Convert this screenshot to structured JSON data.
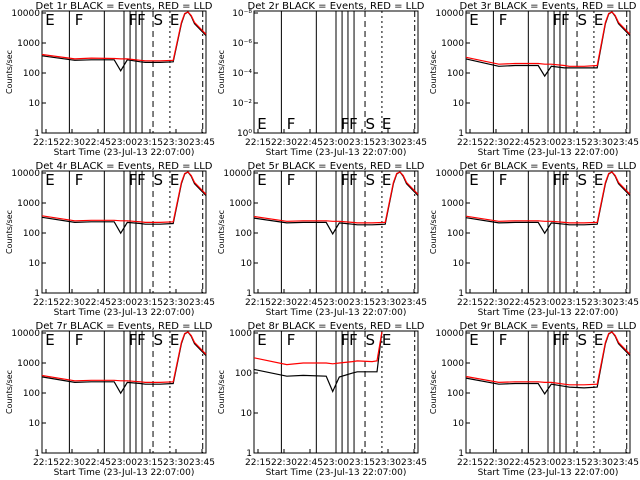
{
  "chart_data": [
    {
      "type": "line",
      "title": "Det 1r BLACK = Events, RED = LLD",
      "xlabel": "Start Time (23-Jul-13 22:07:00)",
      "ylabel": "Counts/sec",
      "x_ticks": [
        "22:15",
        "22:30",
        "22:45",
        "23:00",
        "23:15",
        "23:30",
        "23:45"
      ],
      "y_ticks": [
        "1",
        "10",
        "100",
        "1000",
        "10000"
      ],
      "ylim": [
        1,
        12000
      ],
      "scale": "log",
      "series": [
        {
          "name": "Events",
          "color": "#000000",
          "x": [
            0,
            20,
            30,
            44,
            48,
            52,
            60,
            63,
            72,
            80,
            85,
            87,
            89,
            91,
            93,
            100
          ],
          "y": [
            380,
            270,
            280,
            280,
            120,
            280,
            240,
            230,
            230,
            240,
            4500,
            9500,
            12000,
            8000,
            4500,
            1800
          ]
        },
        {
          "name": "LLD",
          "color": "#ff0000",
          "x": [
            0,
            20,
            30,
            44,
            48,
            52,
            60,
            63,
            72,
            80,
            85,
            87,
            89,
            91,
            93,
            100
          ],
          "y": [
            420,
            300,
            320,
            310,
            300,
            300,
            270,
            260,
            260,
            270,
            5000,
            10000,
            12000,
            8500,
            5000,
            2000
          ]
        }
      ],
      "markers": [
        "E",
        "F",
        "F",
        "F",
        "S",
        "E"
      ]
    },
    {
      "type": "line",
      "title": "Det 2r BLACK = Events, RED = LLD",
      "xlabel": "Start Time (23-Jul-13 22:07:00)",
      "ylabel": "Counts/sec",
      "x_ticks": [
        "22:15",
        "22:30",
        "22:45",
        "23:00",
        "23:15",
        "23:30",
        "23:45"
      ],
      "y_ticks": [
        "10⁰",
        "10⁻²",
        "10⁻⁴",
        "10⁻⁶",
        "10⁻⁸"
      ],
      "ylim": [
        1,
        1e-08
      ],
      "scale": "log",
      "series": [],
      "markers": [
        "E",
        "F",
        "F",
        "F",
        "S",
        "E"
      ]
    },
    {
      "type": "line",
      "title": "Det 3r BLACK = Events, RED = LLD",
      "xlabel": "Start Time (23-Jul-13 22:07:00)",
      "ylabel": "Counts/sec",
      "x_ticks": [
        "22:15",
        "22:30",
        "22:45",
        "23:00",
        "23:15",
        "23:30",
        "23:45"
      ],
      "y_ticks": [
        "1",
        "10",
        "100",
        "1000",
        "10000"
      ],
      "ylim": [
        1,
        12000
      ],
      "scale": "log",
      "series": [
        {
          "name": "Events",
          "color": "#000000",
          "x": [
            0,
            20,
            30,
            44,
            48,
            52,
            60,
            63,
            72,
            80,
            85,
            87,
            89,
            91,
            93,
            100
          ],
          "y": [
            300,
            170,
            180,
            180,
            80,
            170,
            150,
            150,
            150,
            150,
            4500,
            9500,
            12000,
            8000,
            4500,
            1800
          ]
        },
        {
          "name": "LLD",
          "color": "#ff0000",
          "x": [
            0,
            20,
            30,
            44,
            48,
            52,
            60,
            63,
            72,
            80,
            85,
            87,
            89,
            91,
            93,
            100
          ],
          "y": [
            340,
            200,
            210,
            210,
            200,
            200,
            180,
            170,
            170,
            180,
            5000,
            10000,
            12000,
            8500,
            5000,
            2000
          ]
        }
      ],
      "markers": [
        "E",
        "F",
        "F",
        "F",
        "S",
        "E"
      ]
    },
    {
      "type": "line",
      "title": "Det 4r BLACK = Events, RED = LLD",
      "xlabel": "Start Time (23-Jul-13 22:07:00)",
      "ylabel": "Counts/sec",
      "x_ticks": [
        "22:15",
        "22:30",
        "22:45",
        "23:00",
        "23:15",
        "23:30",
        "23:45"
      ],
      "y_ticks": [
        "1",
        "10",
        "100",
        "1000",
        "10000"
      ],
      "ylim": [
        1,
        12000
      ],
      "scale": "log",
      "series": [
        {
          "name": "Events",
          "color": "#000000",
          "x": [
            0,
            20,
            30,
            44,
            48,
            52,
            60,
            63,
            72,
            80,
            85,
            87,
            89,
            91,
            93,
            100
          ],
          "y": [
            340,
            230,
            240,
            240,
            100,
            230,
            210,
            200,
            200,
            210,
            4500,
            9500,
            12000,
            8000,
            4500,
            1800
          ]
        },
        {
          "name": "LLD",
          "color": "#ff0000",
          "x": [
            0,
            20,
            30,
            44,
            48,
            52,
            60,
            63,
            72,
            80,
            85,
            87,
            89,
            91,
            93,
            100
          ],
          "y": [
            380,
            260,
            270,
            270,
            260,
            260,
            240,
            230,
            230,
            240,
            5000,
            10000,
            12000,
            8500,
            5000,
            2000
          ]
        }
      ],
      "markers": [
        "E",
        "F",
        "F",
        "F",
        "S",
        "E"
      ]
    },
    {
      "type": "line",
      "title": "Det 5r BLACK = Events, RED = LLD",
      "xlabel": "Start Time (23-Jul-13 22:07:00)",
      "ylabel": "Counts/sec",
      "x_ticks": [
        "22:15",
        "22:30",
        "22:45",
        "23:00",
        "23:15",
        "23:30",
        "23:45"
      ],
      "y_ticks": [
        "1",
        "10",
        "100",
        "1000",
        "10000"
      ],
      "ylim": [
        1,
        12000
      ],
      "scale": "log",
      "series": [
        {
          "name": "Events",
          "color": "#000000",
          "x": [
            0,
            20,
            30,
            44,
            48,
            52,
            60,
            63,
            72,
            80,
            85,
            87,
            89,
            91,
            93,
            100
          ],
          "y": [
            320,
            220,
            230,
            230,
            95,
            220,
            200,
            190,
            190,
            200,
            4500,
            9500,
            12000,
            8000,
            4500,
            1800
          ]
        },
        {
          "name": "LLD",
          "color": "#ff0000",
          "x": [
            0,
            20,
            30,
            44,
            48,
            52,
            60,
            63,
            72,
            80,
            85,
            87,
            89,
            91,
            93,
            100
          ],
          "y": [
            360,
            250,
            260,
            260,
            250,
            250,
            230,
            220,
            220,
            230,
            5000,
            10000,
            12000,
            8500,
            5000,
            2000
          ]
        }
      ],
      "markers": [
        "E",
        "F",
        "F",
        "F",
        "S",
        "E"
      ]
    },
    {
      "type": "line",
      "title": "Det 6r BLACK = Events, RED = LLD",
      "xlabel": "Start Time (23-Jul-13 22:07:00)",
      "ylabel": "Counts/sec",
      "x_ticks": [
        "22:15",
        "22:30",
        "22:45",
        "23:00",
        "23:15",
        "23:30",
        "23:45"
      ],
      "y_ticks": [
        "1",
        "10",
        "100",
        "1000",
        "10000"
      ],
      "ylim": [
        1,
        12000
      ],
      "scale": "log",
      "series": [
        {
          "name": "Events",
          "color": "#000000",
          "x": [
            0,
            20,
            30,
            44,
            48,
            52,
            60,
            63,
            72,
            80,
            85,
            87,
            89,
            91,
            93,
            100
          ],
          "y": [
            330,
            220,
            230,
            230,
            100,
            220,
            200,
            190,
            190,
            200,
            4500,
            9500,
            12000,
            8000,
            4500,
            1800
          ]
        },
        {
          "name": "LLD",
          "color": "#ff0000",
          "x": [
            0,
            20,
            30,
            44,
            48,
            52,
            60,
            63,
            72,
            80,
            85,
            87,
            89,
            91,
            93,
            100
          ],
          "y": [
            370,
            250,
            260,
            260,
            250,
            250,
            230,
            220,
            220,
            230,
            5000,
            10000,
            12000,
            8500,
            5000,
            2000
          ]
        }
      ],
      "markers": [
        "E",
        "F",
        "F",
        "F",
        "S",
        "E"
      ]
    },
    {
      "type": "line",
      "title": "Det 7r BLACK = Events, RED = LLD",
      "xlabel": "Start Time (23-Jul-13 22:07:00)",
      "ylabel": "Counts/sec",
      "x_ticks": [
        "22:15",
        "22:30",
        "22:45",
        "23:00",
        "23:15",
        "23:30",
        "23:45"
      ],
      "y_ticks": [
        "1",
        "10",
        "100",
        "1000",
        "10000"
      ],
      "ylim": [
        1,
        12000
      ],
      "scale": "log",
      "series": [
        {
          "name": "Events",
          "color": "#000000",
          "x": [
            0,
            20,
            30,
            44,
            48,
            52,
            60,
            63,
            72,
            80,
            85,
            87,
            89,
            91,
            93,
            100
          ],
          "y": [
            350,
            230,
            240,
            240,
            100,
            230,
            210,
            200,
            200,
            210,
            4500,
            9500,
            12000,
            8000,
            4500,
            1800
          ]
        },
        {
          "name": "LLD",
          "color": "#ff0000",
          "x": [
            0,
            20,
            30,
            44,
            48,
            52,
            60,
            63,
            72,
            80,
            85,
            87,
            89,
            91,
            93,
            100
          ],
          "y": [
            390,
            260,
            270,
            270,
            260,
            260,
            240,
            230,
            230,
            240,
            5000,
            10000,
            12000,
            8500,
            5000,
            2000
          ]
        }
      ],
      "markers": [
        "E",
        "F",
        "F",
        "F",
        "S",
        "E"
      ]
    },
    {
      "type": "line",
      "title": "Det 8r BLACK = Events, RED = LLD",
      "xlabel": "Start Time (23-Jul-13 22:07:00)",
      "ylabel": "Counts/sec",
      "x_ticks": [
        "22:15",
        "22:30",
        "22:45",
        "23:00",
        "23:15",
        "23:30",
        "23:45"
      ],
      "y_ticks": [
        "1",
        "10",
        "100",
        "1000"
      ],
      "ylim": [
        1,
        1500
      ],
      "scale": "log",
      "series": [
        {
          "name": "Events",
          "color": "#000000",
          "x": [
            0,
            20,
            30,
            44,
            48,
            52,
            60,
            63,
            72,
            75,
            78
          ],
          "y": [
            150,
            100,
            105,
            100,
            40,
            95,
            120,
            130,
            130,
            130,
            1500
          ]
        },
        {
          "name": "LLD",
          "color": "#ff0000",
          "x": [
            0,
            20,
            30,
            44,
            48,
            52,
            60,
            63,
            72,
            75,
            78
          ],
          "y": [
            300,
            200,
            220,
            220,
            210,
            220,
            240,
            250,
            240,
            250,
            1500
          ]
        }
      ],
      "markers": [
        "E",
        "F",
        "F",
        "F",
        "S",
        "E"
      ]
    },
    {
      "type": "line",
      "title": "Det 9r BLACK = Events, RED = LLD",
      "xlabel": "Start Time (23-Jul-13 22:07:00)",
      "ylabel": "Counts/sec",
      "x_ticks": [
        "22:15",
        "22:30",
        "22:45",
        "23:00",
        "23:15",
        "23:30",
        "23:45"
      ],
      "y_ticks": [
        "1",
        "10",
        "100",
        "1000",
        "10000"
      ],
      "ylim": [
        1,
        12000
      ],
      "scale": "log",
      "series": [
        {
          "name": "Events",
          "color": "#000000",
          "x": [
            0,
            20,
            30,
            44,
            48,
            52,
            60,
            63,
            72,
            80,
            85,
            87,
            89,
            91,
            93,
            100
          ],
          "y": [
            320,
            200,
            210,
            210,
            95,
            200,
            170,
            160,
            150,
            160,
            4500,
            9500,
            12000,
            8000,
            4500,
            1800
          ]
        },
        {
          "name": "LLD",
          "color": "#ff0000",
          "x": [
            0,
            20,
            30,
            44,
            48,
            52,
            60,
            63,
            72,
            80,
            85,
            87,
            89,
            91,
            93,
            100
          ],
          "y": [
            360,
            230,
            240,
            240,
            230,
            230,
            200,
            190,
            190,
            200,
            5000,
            10000,
            12000,
            8500,
            5000,
            2000
          ]
        }
      ],
      "markers": [
        "E",
        "F",
        "F",
        "F",
        "S",
        "E"
      ]
    }
  ]
}
